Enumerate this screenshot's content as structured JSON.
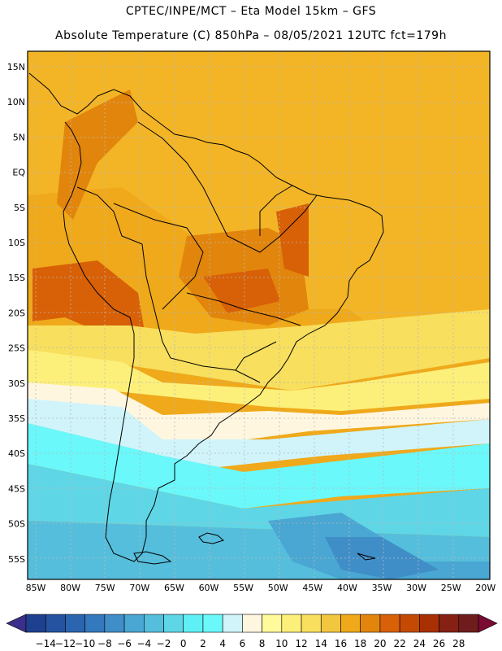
{
  "header": {
    "line1": "CPTEC/INPE/MCT –  Eta Model 15km – GFS",
    "line2": "Absolute Temperature (C) 850hPa – 08/05/2021 12UTC fct=179h"
  },
  "map": {
    "lat_ticks": [
      "15N",
      "10N",
      "5N",
      "EQ",
      "5S",
      "10S",
      "15S",
      "20S",
      "25S",
      "30S",
      "35S",
      "40S",
      "45S",
      "50S",
      "55S"
    ],
    "lon_ticks": [
      "85W",
      "80W",
      "75W",
      "70W",
      "65W",
      "60W",
      "55W",
      "50W",
      "45W",
      "40W",
      "35W",
      "30W",
      "25W",
      "20W"
    ]
  },
  "colorbar": {
    "labels": [
      "-14",
      "-12",
      "-10",
      "-8",
      "-6",
      "-4",
      "-2",
      "0",
      "2",
      "4",
      "6",
      "8",
      "10",
      "12",
      "14",
      "16",
      "18",
      "20",
      "22",
      "24",
      "26",
      "28"
    ],
    "colors": [
      "#1f3f8f",
      "#2553a0",
      "#2b65b0",
      "#3478be",
      "#3f8ec8",
      "#4aa6d2",
      "#55bedc",
      "#5fd6e6",
      "#5ff0f5",
      "#6af8fa",
      "#d0f4fa",
      "#fff6e0",
      "#fffa9a",
      "#fdf07a",
      "#f8df5e",
      "#f3c640",
      "#efa91a",
      "#e2850c",
      "#d86006",
      "#c44a04",
      "#a83002",
      "#862014",
      "#6f1c1c"
    ],
    "under_color": "#3a2f8a",
    "over_color": "#7a0b33"
  }
}
